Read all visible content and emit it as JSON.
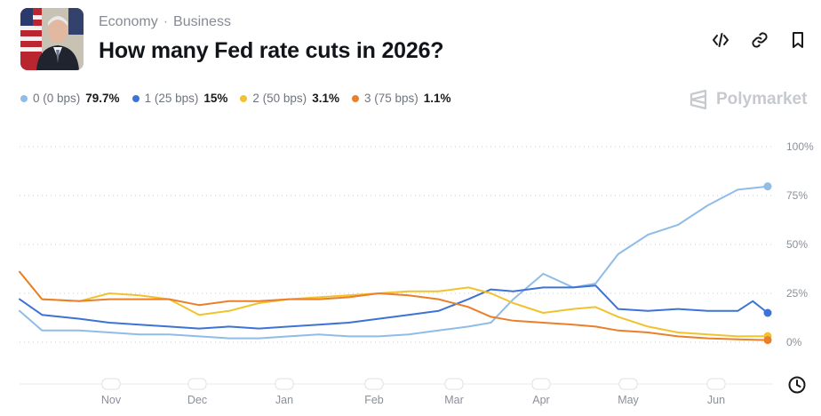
{
  "header": {
    "breadcrumb": [
      "Economy",
      "Business"
    ],
    "separator": "·",
    "title": "How many Fed rate cuts in 2026?"
  },
  "actions": [
    {
      "name": "embed-button",
      "icon": "code-icon"
    },
    {
      "name": "copy-link-button",
      "icon": "link-icon"
    },
    {
      "name": "bookmark-button",
      "icon": "bookmark-icon"
    }
  ],
  "brand": {
    "name": "Polymarket",
    "icon": "polymarket-logo-icon"
  },
  "legend": [
    {
      "label": "0 (0 bps)",
      "value": "79.7%",
      "color": "#8fbde8"
    },
    {
      "label": "1 (25 bps)",
      "value": "15%",
      "color": "#3d73d4"
    },
    {
      "label": "2 (50 bps)",
      "value": "3.1%",
      "color": "#f1c22e"
    },
    {
      "label": "3 (75 bps)",
      "value": "1.1%",
      "color": "#ea7f2c"
    }
  ],
  "chart_data": {
    "type": "line",
    "x_label_months": [
      "Nov",
      "Dec",
      "Jan",
      "Feb",
      "Mar",
      "Apr",
      "May",
      "Jun"
    ],
    "y_ticks": [
      "100%",
      "75%",
      "50%",
      "25%",
      "0%"
    ],
    "ylim": [
      0,
      100
    ],
    "unit": "%",
    "grid": true,
    "series": [
      {
        "name": "0 (0 bps)",
        "color": "#8fbde8",
        "x": [
          0,
          3,
          8,
          12,
          16,
          20,
          24,
          28,
          32,
          36,
          40,
          44,
          48,
          52,
          56,
          60,
          63,
          66,
          70,
          74,
          77,
          80,
          84,
          88,
          92,
          96,
          100
        ],
        "values": [
          16,
          6,
          6,
          5,
          4,
          4,
          3,
          2,
          2,
          3,
          4,
          3,
          3,
          4,
          6,
          8,
          10,
          22,
          35,
          28,
          30,
          45,
          55,
          60,
          70,
          78,
          79.7
        ]
      },
      {
        "name": "1 (25 bps)",
        "color": "#3d73d4",
        "x": [
          0,
          3,
          8,
          12,
          16,
          20,
          24,
          28,
          32,
          36,
          40,
          44,
          48,
          52,
          56,
          60,
          63,
          66,
          70,
          74,
          77,
          80,
          84,
          88,
          92,
          96,
          98,
          100
        ],
        "values": [
          22,
          14,
          12,
          10,
          9,
          8,
          7,
          8,
          7,
          8,
          9,
          10,
          12,
          14,
          16,
          22,
          27,
          26,
          28,
          28,
          29,
          17,
          16,
          17,
          16,
          16,
          21,
          15
        ]
      },
      {
        "name": "2 (50 bps)",
        "color": "#f1c22e",
        "x": [
          0,
          3,
          8,
          12,
          16,
          20,
          24,
          28,
          32,
          36,
          40,
          44,
          48,
          52,
          56,
          60,
          63,
          66,
          70,
          74,
          77,
          80,
          84,
          88,
          92,
          96,
          100
        ],
        "values": [
          36,
          22,
          21,
          25,
          24,
          22,
          14,
          16,
          20,
          22,
          23,
          24,
          25,
          26,
          26,
          28,
          25,
          20,
          15,
          17,
          18,
          13,
          8,
          5,
          4,
          3,
          3.1
        ]
      },
      {
        "name": "3 (75 bps)",
        "color": "#ea7f2c",
        "x": [
          0,
          3,
          8,
          12,
          16,
          20,
          24,
          28,
          32,
          36,
          40,
          44,
          48,
          52,
          56,
          60,
          63,
          66,
          70,
          74,
          77,
          80,
          84,
          88,
          92,
          96,
          100
        ],
        "values": [
          36,
          22,
          21,
          22,
          22,
          22,
          19,
          21,
          21,
          22,
          22,
          23,
          25,
          24,
          22,
          18,
          13,
          11,
          10,
          9,
          8,
          6,
          5,
          3,
          2,
          1.5,
          1.1
        ]
      }
    ]
  }
}
